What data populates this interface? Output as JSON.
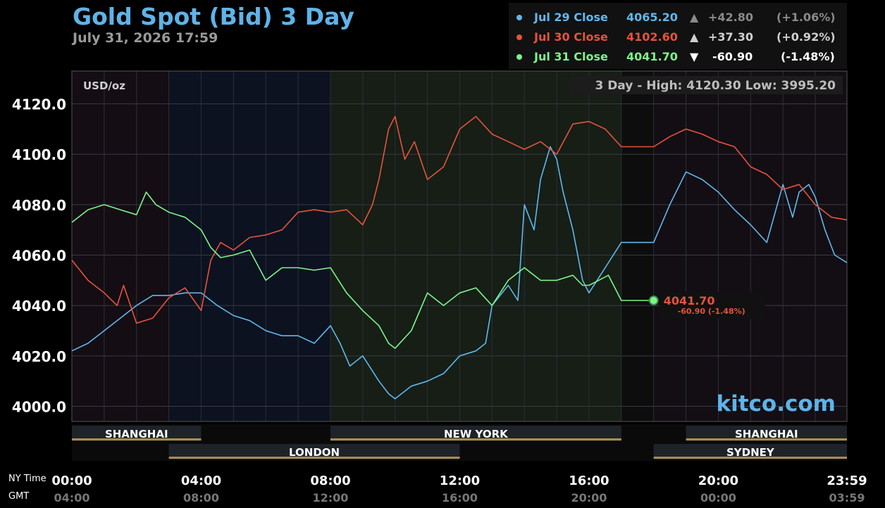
{
  "header": {
    "title": "Gold Spot (Bid) 3 Day",
    "date": "July 31, 2026 17:59"
  },
  "legend": [
    {
      "label": "Jul 29 Close",
      "price": "4065.20",
      "arrow": "▲",
      "change": "+42.80",
      "pct": "(+1.06%)",
      "color": "#5fb8ee",
      "text_color": "#5fb8ee",
      "price_color": "#5fb8ee",
      "change_color": "#8a8a8a"
    },
    {
      "label": "Jul 30 Close",
      "price": "4102.60",
      "arrow": "▲",
      "change": "+37.30",
      "pct": "(+0.92%)",
      "color": "#e5533c",
      "text_color": "#e5533c",
      "price_color": "#e5533c",
      "change_color": "#cfcfcf"
    },
    {
      "label": "Jul 31 Close",
      "price": "4041.70",
      "arrow": "▼",
      "change": "-60.90",
      "pct": "(-1.48%)",
      "color": "#7cf58a",
      "text_color": "#7cf58a",
      "price_color": "#7cf58a",
      "change_color": "#ffffff"
    }
  ],
  "panel": {
    "unit": "USD/oz",
    "range_text": "3 Day - High: 4120.30  Low: 3995.20",
    "watermark": "kitco.com"
  },
  "last_marker": {
    "price": "4041.70",
    "change": "-60.90 (-1.48%)"
  },
  "sessions": [
    {
      "name": "SHANGHAI",
      "start": 0.0,
      "end": 4.0,
      "row": 1
    },
    {
      "name": "NEW YORK",
      "start": 8.0,
      "end": 17.0,
      "row": 1
    },
    {
      "name": "SHANGHAI",
      "start": 19.0,
      "end": 23.98,
      "row": 1
    },
    {
      "name": "LONDON",
      "start": 3.0,
      "end": 12.0,
      "row": 2
    },
    {
      "name": "SYDNEY",
      "start": 18.0,
      "end": 23.98,
      "row": 2
    }
  ],
  "time_axis": {
    "ny_label": "NY Time",
    "gmt_label": "GMT",
    "ticks": [
      {
        "t": 0,
        "ny": "00:00",
        "gmt": "04:00"
      },
      {
        "t": 4,
        "ny": "04:00",
        "gmt": "08:00"
      },
      {
        "t": 8,
        "ny": "08:00",
        "gmt": "12:00"
      },
      {
        "t": 12,
        "ny": "12:00",
        "gmt": "16:00"
      },
      {
        "t": 16,
        "ny": "16:00",
        "gmt": "20:00"
      },
      {
        "t": 20,
        "ny": "20:00",
        "gmt": "00:00"
      },
      {
        "t": 23.98,
        "ny": "23:59",
        "gmt": "03:59"
      }
    ]
  },
  "chart_data": {
    "type": "line",
    "title": "Gold Spot (Bid) 3 Day",
    "ylabel": "USD/oz",
    "xlabel": "NY Time",
    "ylim": [
      3994,
      4133
    ],
    "xlim": [
      0,
      23.98
    ],
    "yticks": [
      "4000.0",
      "4020.0",
      "4040.0",
      "4060.0",
      "4080.0",
      "4100.0",
      "4120.0"
    ],
    "ytick_values": [
      4000,
      4020,
      4040,
      4060,
      4080,
      4100,
      4120
    ],
    "grid": true,
    "series": [
      {
        "name": "Jul 29 Close",
        "color": "#5fb8ee",
        "x": [
          0,
          0.5,
          1.0,
          1.5,
          2.0,
          2.5,
          3.0,
          3.5,
          4.0,
          4.5,
          5.0,
          5.5,
          6.0,
          6.5,
          7.0,
          7.5,
          8.0,
          8.3,
          8.6,
          9.0,
          9.5,
          9.8,
          10.0,
          10.5,
          11.0,
          11.5,
          12.0,
          12.5,
          12.8,
          13.0,
          13.5,
          13.8,
          14.0,
          14.3,
          14.5,
          14.8,
          15.0,
          15.2,
          15.5,
          15.8,
          16.0,
          16.5,
          17.0,
          17.5,
          18.0,
          18.5,
          19.0,
          19.5,
          20.0,
          20.5,
          21.0,
          21.5,
          22.0,
          22.3,
          22.5,
          22.8,
          23.0,
          23.3,
          23.6,
          23.98
        ],
        "y": [
          4022,
          4025,
          4030,
          4035,
          4040,
          4044,
          4044,
          4045,
          4045,
          4040,
          4036,
          4034,
          4030,
          4028,
          4028,
          4025,
          4032,
          4025,
          4016,
          4020,
          4010,
          4005,
          4003,
          4008,
          4010,
          4013,
          4020,
          4022,
          4025,
          4040,
          4048,
          4042,
          4080,
          4070,
          4090,
          4103,
          4098,
          4085,
          4070,
          4050,
          4045,
          4055,
          4065,
          4065,
          4065,
          4080,
          4093,
          4090,
          4085,
          4078,
          4072,
          4065,
          4088,
          4075,
          4085,
          4088,
          4083,
          4070,
          4060,
          4057
        ]
      },
      {
        "name": "Jul 30 Close",
        "color": "#e5533c",
        "x": [
          0,
          0.5,
          1.0,
          1.4,
          1.6,
          2.0,
          2.5,
          3.0,
          3.5,
          4.0,
          4.3,
          4.6,
          5.0,
          5.5,
          6.0,
          6.5,
          7.0,
          7.5,
          8.0,
          8.5,
          9.0,
          9.3,
          9.5,
          9.8,
          10.0,
          10.3,
          10.6,
          11.0,
          11.5,
          12.0,
          12.5,
          13.0,
          13.5,
          14.0,
          14.5,
          15.0,
          15.5,
          16.0,
          16.5,
          17.0,
          17.5,
          18.0,
          18.5,
          19.0,
          19.5,
          20.0,
          20.5,
          21.0,
          21.5,
          22.0,
          22.5,
          23.0,
          23.5,
          23.98
        ],
        "y": [
          4058,
          4050,
          4045,
          4040,
          4048,
          4033,
          4035,
          4043,
          4047,
          4038,
          4058,
          4065,
          4062,
          4067,
          4068,
          4070,
          4077,
          4078,
          4077,
          4078,
          4072,
          4080,
          4090,
          4110,
          4115,
          4098,
          4105,
          4090,
          4095,
          4110,
          4115,
          4108,
          4105,
          4102,
          4105,
          4100,
          4112,
          4113,
          4110,
          4103,
          4103,
          4103,
          4107,
          4110,
          4108,
          4105,
          4103,
          4095,
          4092,
          4086,
          4088,
          4080,
          4075,
          4074
        ]
      },
      {
        "name": "Jul 31 Close",
        "color": "#7cf58a",
        "x": [
          0,
          0.5,
          1.0,
          1.5,
          2.0,
          2.3,
          2.6,
          3.0,
          3.5,
          4.0,
          4.3,
          4.6,
          5.0,
          5.5,
          6.0,
          6.5,
          7.0,
          7.5,
          8.0,
          8.5,
          9.0,
          9.5,
          9.8,
          10.0,
          10.5,
          11.0,
          11.5,
          12.0,
          12.5,
          13.0,
          13.5,
          14.0,
          14.5,
          15.0,
          15.5,
          15.8,
          16.0,
          16.3,
          16.6,
          17.0,
          17.5,
          18.0
        ],
        "y": [
          4073,
          4078,
          4080,
          4078,
          4076,
          4085,
          4080,
          4077,
          4075,
          4070,
          4063,
          4059,
          4060,
          4062,
          4050,
          4055,
          4055,
          4054,
          4055,
          4045,
          4038,
          4032,
          4025,
          4023,
          4030,
          4045,
          4040,
          4045,
          4047,
          4040,
          4050,
          4055,
          4050,
          4050,
          4052,
          4048,
          4048,
          4050,
          4052,
          4042,
          4042,
          4042
        ]
      }
    ]
  }
}
